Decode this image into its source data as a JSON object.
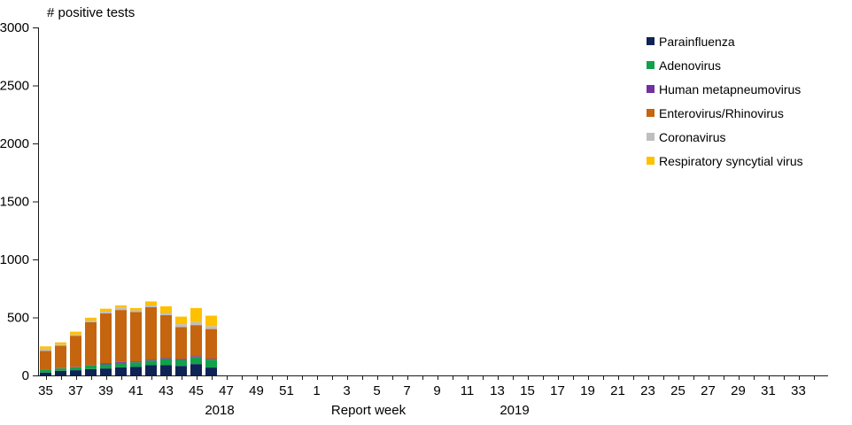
{
  "chart_data": {
    "type": "bar",
    "stacked": true,
    "y_axis": {
      "label": "# positive tests",
      "min": 0,
      "max": 3000,
      "tick_step": 500,
      "ticks": [
        0,
        500,
        1000,
        1500,
        2000,
        2500,
        3000
      ]
    },
    "x_axis": {
      "label": "Report week",
      "year_left": "2018",
      "year_right": "2019",
      "categories": [
        35,
        36,
        37,
        38,
        39,
        40,
        41,
        42,
        43,
        44,
        45,
        46,
        47,
        48,
        49,
        50,
        51,
        52,
        1,
        2,
        3,
        4,
        5,
        6,
        7,
        8,
        9,
        10,
        11,
        12,
        13,
        14,
        15,
        16,
        17,
        18,
        19,
        20,
        21,
        22,
        23,
        24,
        25,
        26,
        27,
        28,
        29,
        30,
        31,
        32,
        33,
        34
      ],
      "labeled_ticks": [
        35,
        37,
        39,
        41,
        43,
        45,
        47,
        49,
        51,
        1,
        3,
        5,
        7,
        9,
        11,
        13,
        15,
        17,
        19,
        21,
        23,
        25,
        27,
        29,
        31,
        33
      ]
    },
    "bar_weeks": [
      35,
      36,
      37,
      38,
      39,
      40,
      41,
      42,
      43,
      44,
      45,
      46
    ],
    "series": [
      {
        "id": "parainfluenza",
        "name": "Parainfluenza",
        "color": "#0F2355",
        "values": [
          25,
          40,
          45,
          55,
          60,
          70,
          75,
          90,
          90,
          82,
          98,
          68
        ]
      },
      {
        "id": "adenovirus",
        "name": "Adenovirus",
        "color": "#12A14B",
        "values": [
          25,
          20,
          25,
          30,
          35,
          38,
          38,
          38,
          52,
          52,
          60,
          68
        ]
      },
      {
        "id": "human-metapneumovirus",
        "name": "Human metapneumovirus",
        "color": "#7030A0",
        "values": [
          2,
          2,
          4,
          5,
          8,
          8,
          8,
          8,
          8,
          8,
          8,
          8
        ]
      },
      {
        "id": "enterovirus-rhinovirus",
        "name": "Enterovirus/Rhinovirus",
        "color": "#C5650F",
        "values": [
          160,
          195,
          268,
          368,
          432,
          448,
          425,
          452,
          370,
          275,
          268,
          256
        ]
      },
      {
        "id": "coronavirus",
        "name": "Coronavirus",
        "color": "#BFBFBF",
        "values": [
          18,
          8,
          10,
          15,
          15,
          22,
          15,
          15,
          18,
          25,
          25,
          25
        ]
      },
      {
        "id": "respiratory-syncytial-virus",
        "name": "Respiratory syncytial virus",
        "color": "#FFC000",
        "values": [
          20,
          20,
          25,
          25,
          25,
          18,
          20,
          35,
          58,
          65,
          122,
          90
        ]
      }
    ],
    "legend_position": "right",
    "grid": false
  }
}
